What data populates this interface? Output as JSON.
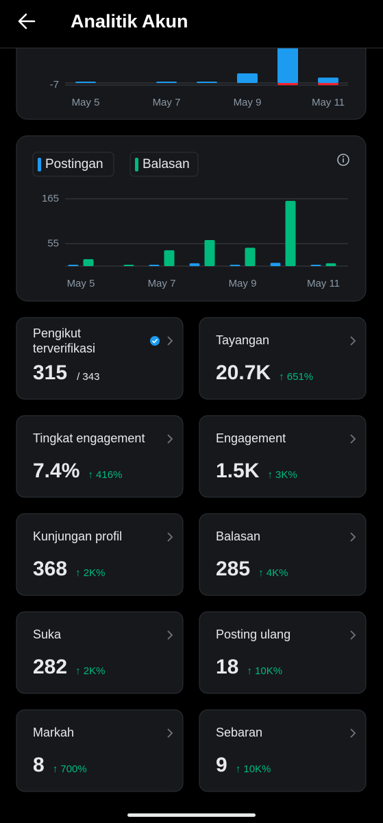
{
  "header": {
    "title": "Analitik Akun"
  },
  "chart_data": [
    {
      "type": "bar",
      "categories": [
        "May 5",
        null,
        "May 7",
        null,
        "May 9",
        null,
        "May 11"
      ],
      "series": [
        {
          "color": "#1d9bf0",
          "values": [
            1,
            0,
            1,
            1,
            32,
            120,
            18
          ]
        },
        {
          "color": "#f4212e",
          "values": [
            0,
            0,
            0,
            0,
            0,
            -7,
            -7
          ]
        }
      ],
      "ylim": [
        -9,
        116
      ],
      "yticks": [
        -7
      ],
      "grid": true
    },
    {
      "type": "bar",
      "categories": [
        "May 5",
        null,
        "May 7",
        null,
        "May 9",
        null,
        "May 11"
      ],
      "series": [
        {
          "name": "Postingan",
          "color": "#1d9bf0",
          "values": [
            2,
            0,
            1,
            7,
            3,
            8,
            1
          ]
        },
        {
          "name": "Balasan",
          "color": "#00ba7c",
          "values": [
            17,
            1,
            39,
            64,
            45,
            160,
            7
          ]
        }
      ],
      "ylim": [
        0,
        180
      ],
      "yticks": [
        55,
        165
      ],
      "grid": true
    }
  ],
  "cards": [
    {
      "title": "Pengikut terverifikasi",
      "value": "315",
      "total": "/ 343"
    },
    {
      "title": "Tayangan",
      "value": "20.7K",
      "change": "↑ 651%"
    },
    {
      "title": "Tingkat engagement",
      "value": "7.4%",
      "change": "↑ 416%"
    },
    {
      "title": "Engagement",
      "value": "1.5K",
      "change": "↑ 3K%"
    },
    {
      "title": "Kunjungan profil",
      "value": "368",
      "change": "↑ 2K%"
    },
    {
      "title": "Balasan",
      "value": "285",
      "change": "↑ 4K%"
    },
    {
      "title": "Suka",
      "value": "282",
      "change": "↑ 2K%"
    },
    {
      "title": "Posting ulang",
      "value": "18",
      "change": "↑ 10K%"
    },
    {
      "title": "Markah",
      "value": "8",
      "change": "↑ 700%"
    },
    {
      "title": "Sebaran",
      "value": "9",
      "change": "↑ 10K%"
    }
  ]
}
